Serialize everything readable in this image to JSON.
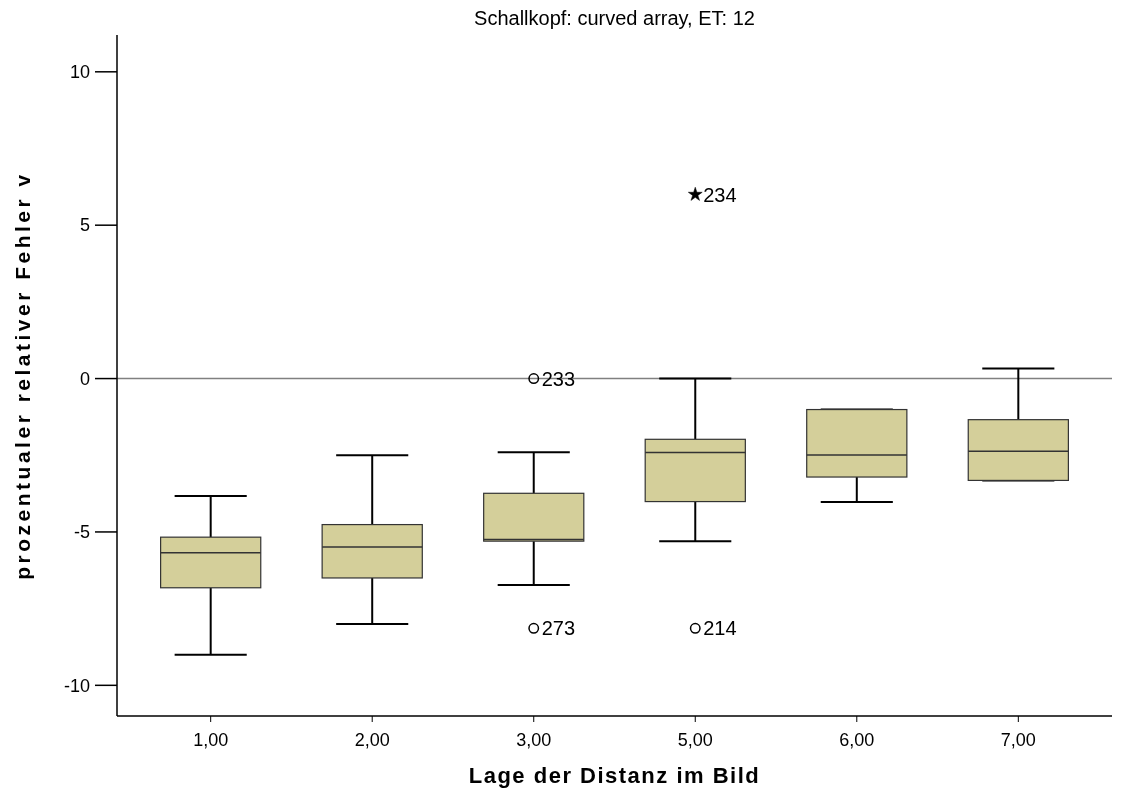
{
  "chart_data": {
    "type": "box",
    "title": "Schallkopf: curved array, ET: 12",
    "xlabel": "Lage der Distanz im Bild",
    "ylabel": "prozentualer relativer Fehler v",
    "categories": [
      "1,00",
      "2,00",
      "3,00",
      "5,00",
      "6,00",
      "7,00"
    ],
    "ylim": [
      -11,
      11.2
    ],
    "yticks": [
      -10,
      -5,
      0,
      5,
      10
    ],
    "series": [
      {
        "type": "box",
        "color": "#d4cf9a",
        "boxes": [
          {
            "low": -9.0,
            "q1": -6.82,
            "median": -5.68,
            "q3": -5.17,
            "high": -3.83
          },
          {
            "low": -8.0,
            "q1": -6.5,
            "median": -5.49,
            "q3": -4.76,
            "high": -2.5
          },
          {
            "low": -6.73,
            "q1": -5.3,
            "median": -5.25,
            "q3": -3.74,
            "high": -2.4
          },
          {
            "low": -5.3,
            "q1": -4.01,
            "median": -2.41,
            "q3": -1.98,
            "high": 0
          },
          {
            "low": -4.02,
            "q1": -3.21,
            "median": -2.49,
            "q3": -1.01,
            "high": -1.01
          },
          {
            "low": -3.32,
            "q1": -3.32,
            "median": -2.37,
            "q3": -1.34,
            "high": 0.33
          }
        ]
      },
      {
        "type": "scatter",
        "marker": "circle",
        "color": "#000000",
        "x": [
          "3,00",
          "3,00",
          "5,00"
        ],
        "values": [
          0,
          -8.14,
          -8.14
        ]
      },
      {
        "type": "scatter",
        "marker": "star",
        "color": "#000000",
        "x": [
          "5,00"
        ],
        "values": [
          6
        ]
      }
    ],
    "ref_lines": [
      {
        "axis": "y",
        "value": 0,
        "color": "#808080"
      }
    ],
    "annotations": [
      {
        "text": "233",
        "x": "3,00",
        "y": 0
      },
      {
        "text": "273",
        "x": "3,00",
        "y": -8.14
      },
      {
        "text": "234",
        "x": "5,00",
        "y": 6
      },
      {
        "text": "214",
        "x": "5,00",
        "y": -8.14
      }
    ],
    "grid": false
  }
}
